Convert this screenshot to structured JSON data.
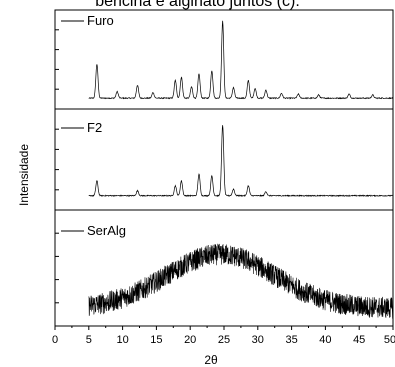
{
  "caption": "bericina e alginato juntos (c).",
  "chart_data": {
    "type": "line",
    "xlabel": "2θ",
    "ylabel": "Intensidade",
    "xlim": [
      0,
      50
    ],
    "xticks": [
      0,
      5,
      10,
      15,
      20,
      25,
      30,
      35,
      40,
      45,
      50
    ],
    "grid": false,
    "legend_position": "top-left of each panel",
    "series": [
      {
        "name": "Furo",
        "x_range": [
          5,
          50
        ],
        "baseline": 0.06,
        "peaks": [
          {
            "x": 6.2,
            "height": 0.42
          },
          {
            "x": 9.2,
            "height": 0.08
          },
          {
            "x": 12.2,
            "height": 0.16
          },
          {
            "x": 14.5,
            "height": 0.07
          },
          {
            "x": 17.8,
            "height": 0.22
          },
          {
            "x": 18.7,
            "height": 0.26
          },
          {
            "x": 20.2,
            "height": 0.14
          },
          {
            "x": 21.3,
            "height": 0.3
          },
          {
            "x": 23.2,
            "height": 0.34
          },
          {
            "x": 24.8,
            "height": 0.95
          },
          {
            "x": 26.4,
            "height": 0.13
          },
          {
            "x": 28.6,
            "height": 0.22
          },
          {
            "x": 29.6,
            "height": 0.12
          },
          {
            "x": 31.2,
            "height": 0.1
          },
          {
            "x": 33.5,
            "height": 0.06
          },
          {
            "x": 36.0,
            "height": 0.05
          },
          {
            "x": 39.0,
            "height": 0.04
          },
          {
            "x": 43.5,
            "height": 0.05
          },
          {
            "x": 47.0,
            "height": 0.04
          }
        ]
      },
      {
        "name": "F2",
        "x_range": [
          5,
          50
        ],
        "baseline": 0.1,
        "peaks": [
          {
            "x": 6.2,
            "height": 0.18
          },
          {
            "x": 12.2,
            "height": 0.06
          },
          {
            "x": 17.8,
            "height": 0.12
          },
          {
            "x": 18.7,
            "height": 0.18
          },
          {
            "x": 21.3,
            "height": 0.26
          },
          {
            "x": 23.2,
            "height": 0.24
          },
          {
            "x": 24.8,
            "height": 0.85
          },
          {
            "x": 26.4,
            "height": 0.08
          },
          {
            "x": 28.6,
            "height": 0.12
          },
          {
            "x": 31.2,
            "height": 0.05
          }
        ]
      },
      {
        "name": "SerAlg",
        "x_range": [
          5,
          50
        ],
        "broad_hump": {
          "center": 24.5,
          "width": 8,
          "height": 0.55
        },
        "noise": "high"
      }
    ]
  }
}
